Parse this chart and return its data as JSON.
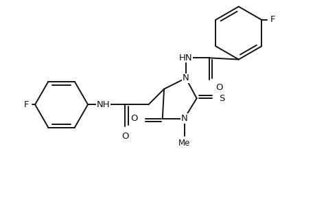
{
  "background_color": "#ffffff",
  "line_color": "#111111",
  "line_width": 1.4,
  "font_size": 9.5,
  "figsize": [
    4.6,
    3.0
  ],
  "dpi": 100,
  "xlim": [
    0,
    100
  ],
  "ylim": [
    20,
    85
  ]
}
